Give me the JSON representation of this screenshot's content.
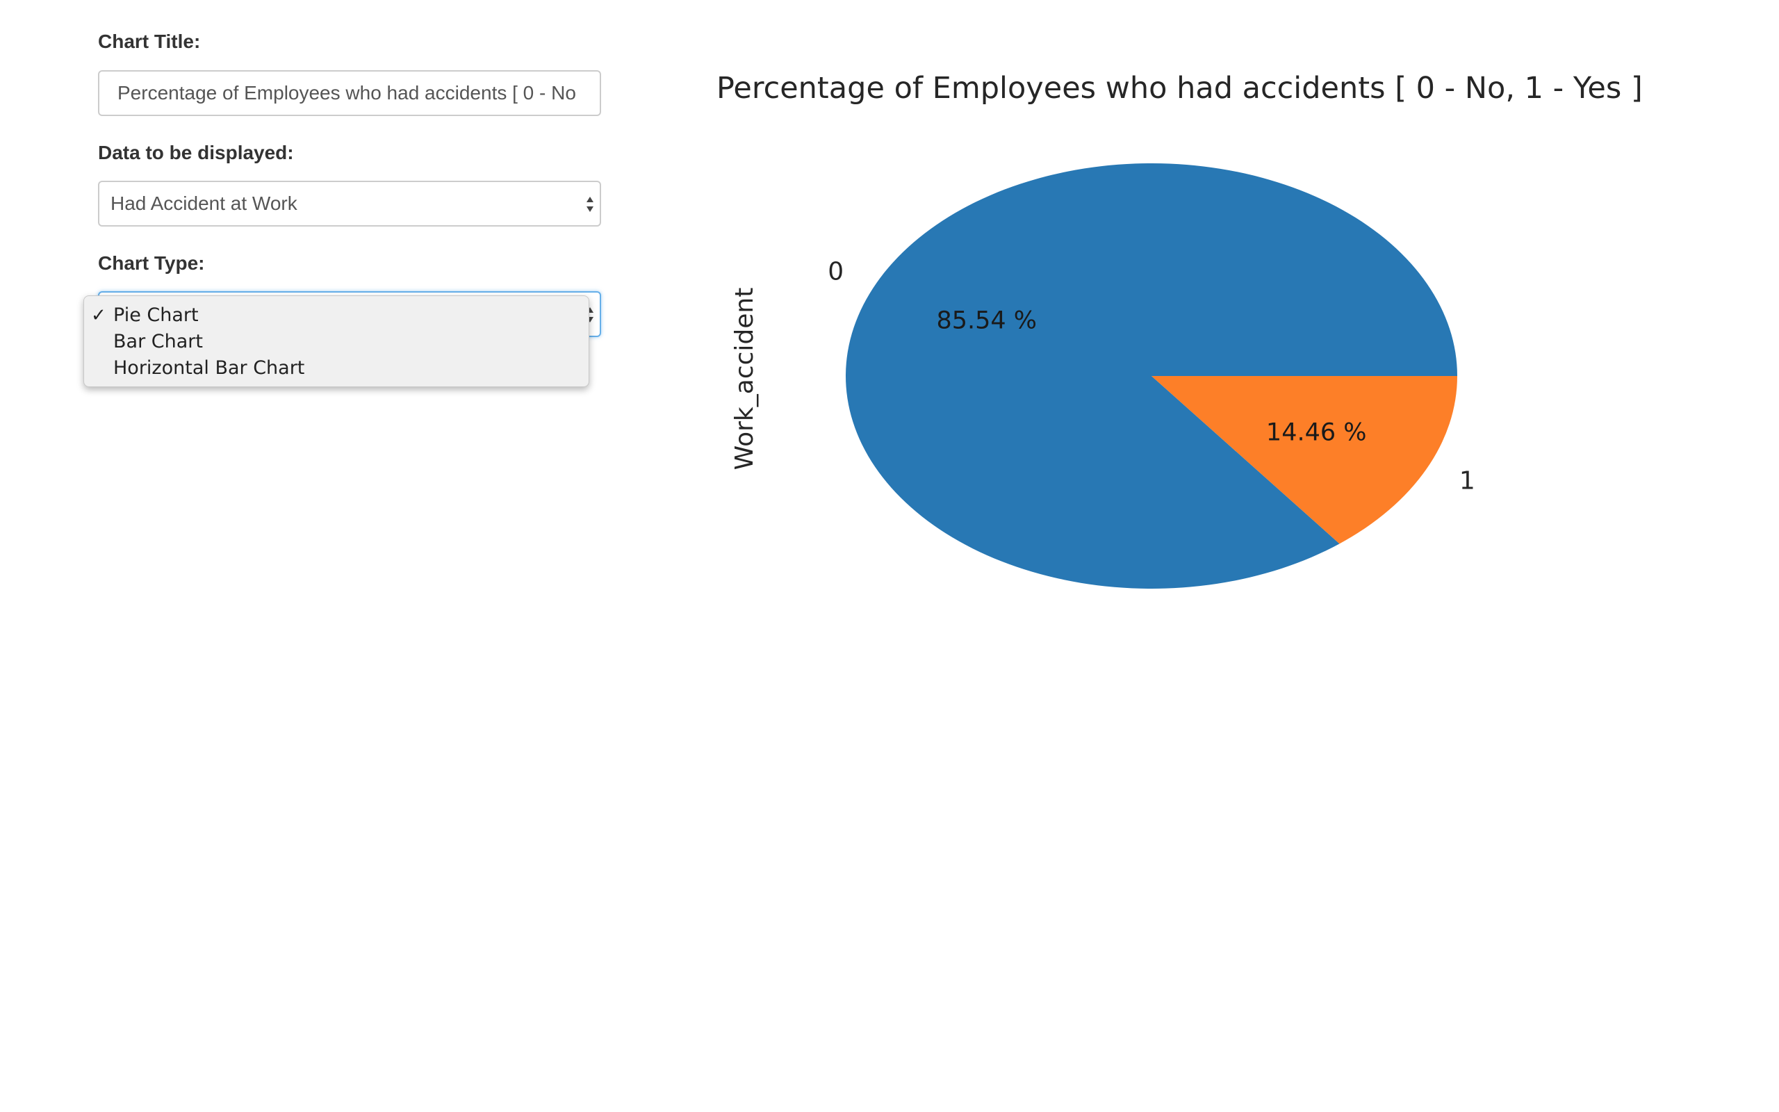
{
  "form": {
    "chart_title_label": "Chart Title:",
    "chart_title_value": "Percentage of Employees who had accidents [ 0 - No",
    "data_label": "Data to be displayed:",
    "data_selected": "Had Accident at Work",
    "chart_type_label": "Chart Type:",
    "chart_type_options": [
      {
        "label": "Pie Chart",
        "selected": true
      },
      {
        "label": "Bar Chart",
        "selected": false
      },
      {
        "label": "Horizontal Bar Chart",
        "selected": false
      }
    ],
    "check_glyph": "✓"
  },
  "colors": {
    "slice_0": "#2878b4",
    "slice_1": "#fd7f28",
    "focus_border": "#66afe9"
  },
  "chart_data": {
    "type": "pie",
    "title": "Percentage of Employees who had accidents [ 0 - No, 1 - Yes ]",
    "ylabel": "Work_accident",
    "categories": [
      "0",
      "1"
    ],
    "values": [
      85.54,
      14.46
    ],
    "value_labels": [
      "85.54 %",
      "14.46 %"
    ],
    "legend": "none"
  }
}
